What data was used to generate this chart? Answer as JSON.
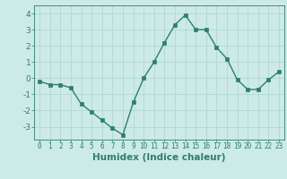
{
  "x": [
    0,
    1,
    2,
    3,
    4,
    5,
    6,
    7,
    8,
    9,
    10,
    11,
    12,
    13,
    14,
    15,
    16,
    17,
    18,
    19,
    20,
    21,
    22,
    23
  ],
  "y": [
    -0.2,
    -0.4,
    -0.4,
    -0.6,
    -1.6,
    -2.1,
    -2.6,
    -3.1,
    -3.5,
    -1.5,
    0.0,
    1.0,
    2.2,
    3.3,
    3.9,
    3.0,
    3.0,
    1.9,
    1.2,
    -0.1,
    -0.7,
    -0.7,
    -0.1,
    0.4
  ],
  "line_color": "#2e7f6e",
  "marker": "s",
  "markersize": 2.2,
  "linewidth": 1.0,
  "xlabel": "Humidex (Indice chaleur)",
  "xlabel_fontsize": 7.5,
  "xlabel_fontweight": "bold",
  "background_color": "#cceae7",
  "grid_color": "#aed4d0",
  "tick_color": "#2e7f6e",
  "ylim": [
    -3.8,
    4.5
  ],
  "xlim": [
    -0.5,
    23.5
  ],
  "yticks": [
    -3,
    -2,
    -1,
    0,
    1,
    2,
    3,
    4
  ],
  "xticks": [
    0,
    1,
    2,
    3,
    4,
    5,
    6,
    7,
    8,
    9,
    10,
    11,
    12,
    13,
    14,
    15,
    16,
    17,
    18,
    19,
    20,
    21,
    22,
    23
  ],
  "ytick_fontsize": 6.5,
  "xtick_fontsize": 5.5
}
